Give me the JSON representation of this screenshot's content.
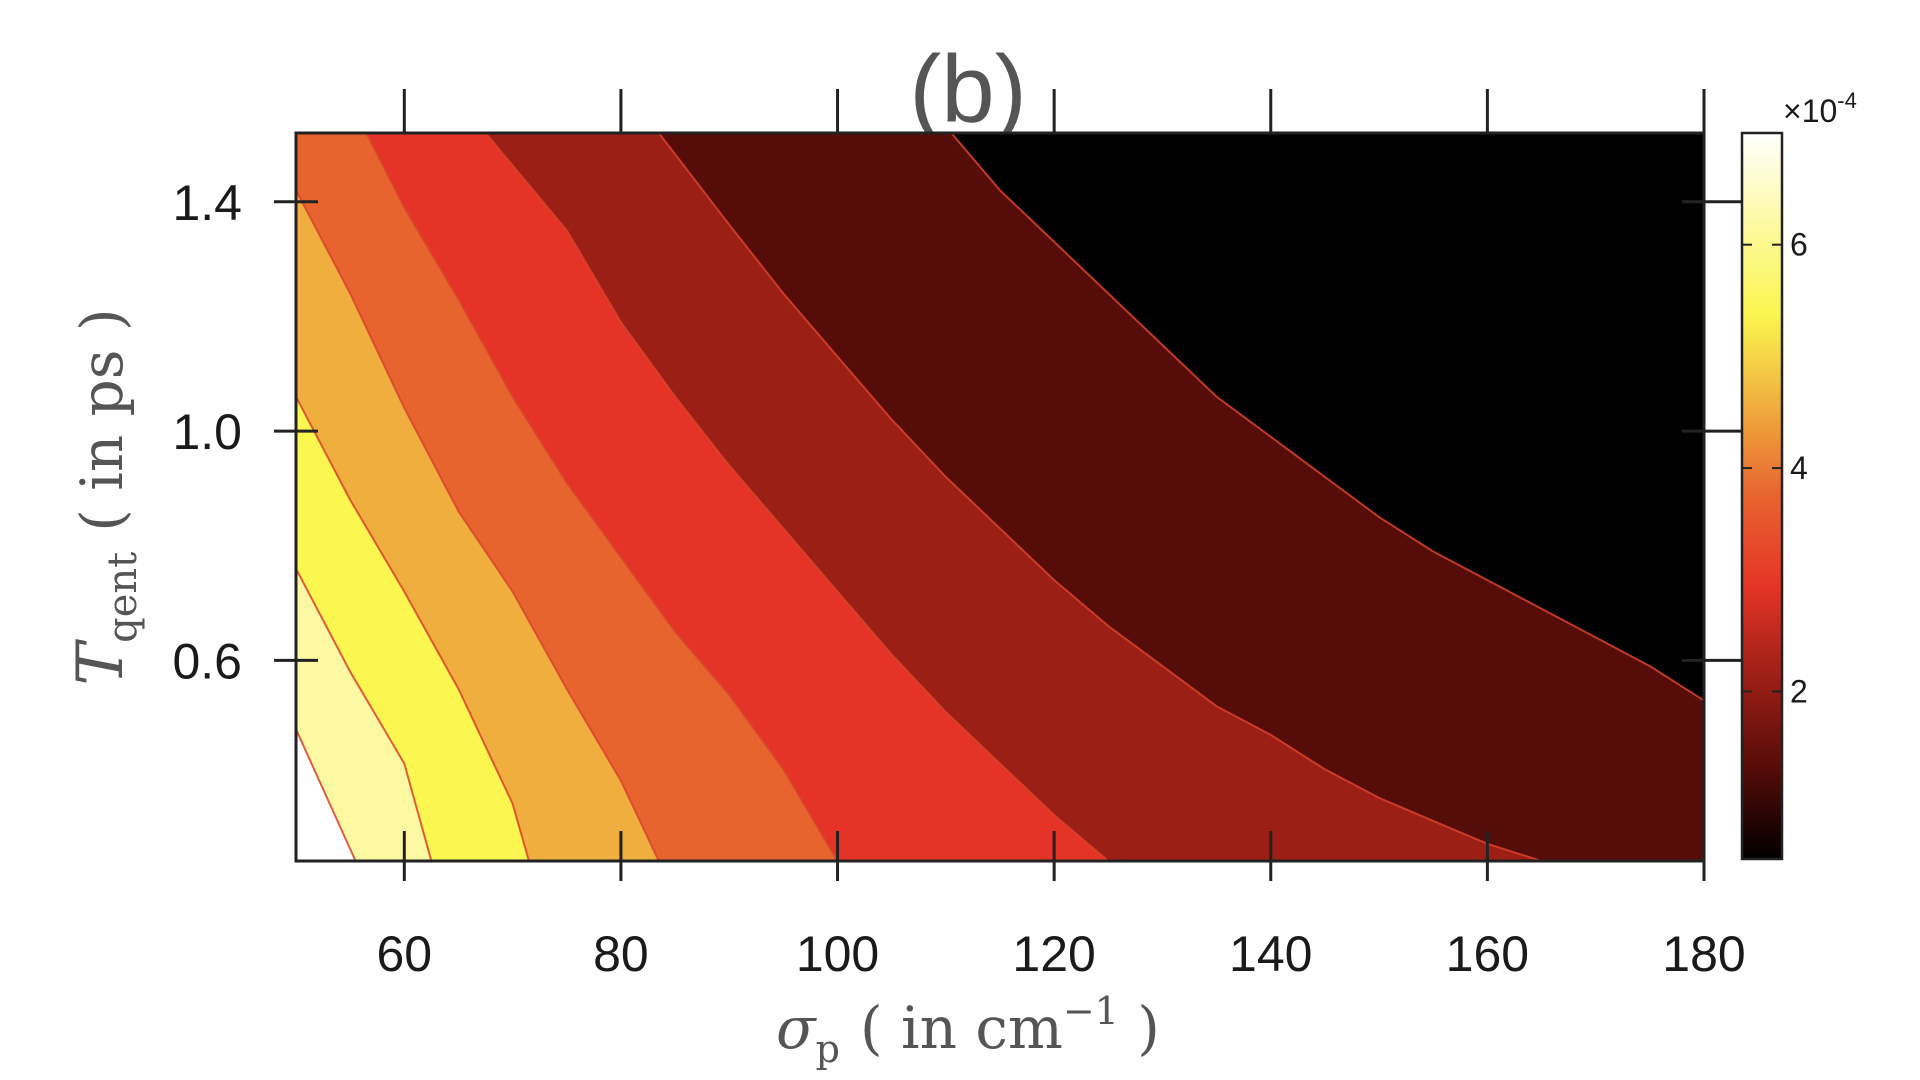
{
  "title": "(b)",
  "chart_data": {
    "type": "contour",
    "title": "(b)",
    "xlabel": {
      "symbol": "σ",
      "subscript": "p",
      "text": "( in cm",
      "superscript": "−1",
      "close": " )"
    },
    "ylabel": {
      "symbol": "T",
      "subscript": "qent",
      "text": "( in ps )"
    },
    "xlim": [
      50,
      180
    ],
    "ylim": [
      0.25,
      1.52
    ],
    "xticks": [
      60,
      80,
      100,
      120,
      140,
      160,
      180
    ],
    "xtick_labels": [
      "60",
      "80",
      "100",
      "120",
      "140",
      "160",
      "180"
    ],
    "yticks": [
      0.6,
      1.0,
      1.4
    ],
    "ytick_labels": [
      "0.6",
      "1.0",
      "1.4"
    ],
    "colorbar": {
      "colormap": "hot",
      "range": [
        0.5,
        7.0
      ],
      "ticks": [
        2,
        4,
        6
      ],
      "tick_labels": [
        "2",
        "4",
        "6"
      ],
      "exponent_label": "×10",
      "exponent_power": "-4",
      "colors": [
        "#000000",
        "#560c09",
        "#9c1f16",
        "#e53427",
        "#e7642f",
        "#f0ae3e",
        "#fbf650",
        "#fdf9a2",
        "#ffffff"
      ]
    },
    "contour_lines": [
      {
        "level_index": 0,
        "points": [
          [
            50,
            0.48
          ],
          [
            55.5,
            0.25
          ]
        ]
      },
      {
        "level_index": 1,
        "points": [
          [
            50,
            0.76
          ],
          [
            55,
            0.58
          ],
          [
            60,
            0.42
          ],
          [
            62.5,
            0.25
          ]
        ]
      },
      {
        "level_index": 2,
        "points": [
          [
            50,
            1.06
          ],
          [
            55,
            0.88
          ],
          [
            60,
            0.72
          ],
          [
            65,
            0.55
          ],
          [
            70,
            0.35
          ],
          [
            71.5,
            0.25
          ]
        ]
      },
      {
        "level_index": 3,
        "points": [
          [
            50,
            1.42
          ],
          [
            55,
            1.24
          ],
          [
            60,
            1.04
          ],
          [
            65,
            0.86
          ],
          [
            70,
            0.72
          ],
          [
            75,
            0.55
          ],
          [
            80,
            0.39
          ],
          [
            83.5,
            0.25
          ]
        ]
      },
      {
        "level_index": 4,
        "points": [
          [
            56.5,
            1.52
          ],
          [
            60,
            1.39
          ],
          [
            65,
            1.23
          ],
          [
            70,
            1.06
          ],
          [
            75,
            0.91
          ],
          [
            80,
            0.78
          ],
          [
            85,
            0.65
          ],
          [
            90,
            0.54
          ],
          [
            95,
            0.41
          ],
          [
            100,
            0.25
          ]
        ]
      },
      {
        "level_index": 5,
        "points": [
          [
            67.5,
            1.52
          ],
          [
            75,
            1.35
          ],
          [
            80,
            1.19
          ],
          [
            85,
            1.06
          ],
          [
            90,
            0.94
          ],
          [
            95,
            0.83
          ],
          [
            100,
            0.72
          ],
          [
            105,
            0.61
          ],
          [
            110,
            0.51
          ],
          [
            115,
            0.42
          ],
          [
            120,
            0.33
          ],
          [
            125,
            0.25
          ]
        ]
      },
      {
        "level_index": 6,
        "points": [
          [
            83.5,
            1.52
          ],
          [
            90,
            1.36
          ],
          [
            95,
            1.24
          ],
          [
            100,
            1.13
          ],
          [
            105,
            1.02
          ],
          [
            110,
            0.92
          ],
          [
            115,
            0.83
          ],
          [
            120,
            0.74
          ],
          [
            125,
            0.66
          ],
          [
            130,
            0.59
          ],
          [
            135,
            0.52
          ],
          [
            140,
            0.47
          ],
          [
            145,
            0.41
          ],
          [
            150,
            0.36
          ],
          [
            155,
            0.32
          ],
          [
            160,
            0.28
          ],
          [
            165,
            0.25
          ]
        ]
      },
      {
        "level_index": 7,
        "points": [
          [
            110.5,
            1.52
          ],
          [
            115,
            1.42
          ],
          [
            120,
            1.33
          ],
          [
            125,
            1.24
          ],
          [
            130,
            1.15
          ],
          [
            135,
            1.06
          ],
          [
            140,
            0.99
          ],
          [
            145,
            0.92
          ],
          [
            150,
            0.85
          ],
          [
            155,
            0.79
          ],
          [
            160,
            0.74
          ],
          [
            165,
            0.69
          ],
          [
            170,
            0.64
          ],
          [
            175,
            0.59
          ],
          [
            180,
            0.53
          ]
        ]
      }
    ]
  }
}
